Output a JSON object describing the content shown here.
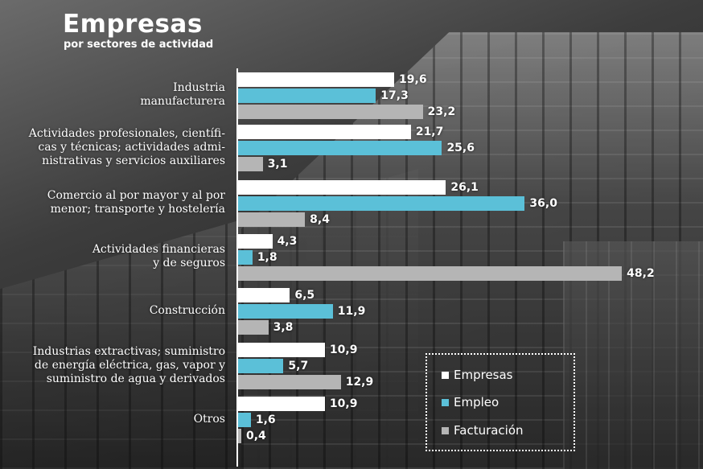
{
  "title": "Empresas",
  "subtitle": "por sectores de actividad",
  "colors": {
    "empresas": "#ffffff",
    "empleo": "#5bc0d8",
    "facturacion": "#b5b5b5"
  },
  "chart_data": {
    "type": "bar",
    "orientation": "horizontal",
    "title": "Empresas",
    "subtitle": "por sectores de actividad",
    "categories": [
      [
        "Industria",
        "manufacturera"
      ],
      [
        "Actividades profesionales, científi-",
        "cas y técnicas; actividades admi-",
        "nistrativas y servicios auxiliares"
      ],
      [
        "Comercio al por mayor y al por",
        "menor; transporte y hostelería"
      ],
      [
        "Actividades financieras",
        "y de seguros"
      ],
      [
        "Construcción"
      ],
      [
        "Industrias extractivas;  suministro",
        "de energía eléctrica, gas, vapor y",
        "suministro de agua y derivados"
      ],
      [
        "Otros"
      ]
    ],
    "series": [
      {
        "name": "Empresas",
        "color": "#ffffff",
        "values": [
          19.6,
          21.7,
          26.1,
          4.3,
          6.5,
          10.9,
          10.9
        ],
        "labels": [
          "19,6",
          "21,7",
          "26,1",
          "4,3",
          "6,5",
          "10,9",
          "10,9"
        ]
      },
      {
        "name": "Empleo",
        "color": "#5bc0d8",
        "values": [
          17.3,
          25.6,
          36.0,
          1.8,
          11.9,
          5.7,
          1.6
        ],
        "labels": [
          "17,3",
          "25,6",
          "36,0",
          "1,8",
          "11,9",
          "5,7",
          "1,6"
        ]
      },
      {
        "name": "Facturación",
        "color": "#b5b5b5",
        "values": [
          23.2,
          3.1,
          8.4,
          48.2,
          3.8,
          12.9,
          0.4
        ],
        "labels": [
          "23,2",
          "3,1",
          "8,4",
          "48,2",
          "3,8",
          "12,9",
          "0,4"
        ]
      }
    ],
    "xlim": [
      0,
      48.2
    ],
    "grid": false,
    "legend_position": "bottom-right"
  },
  "legend": [
    "Empresas",
    "Empleo",
    "Facturación"
  ]
}
